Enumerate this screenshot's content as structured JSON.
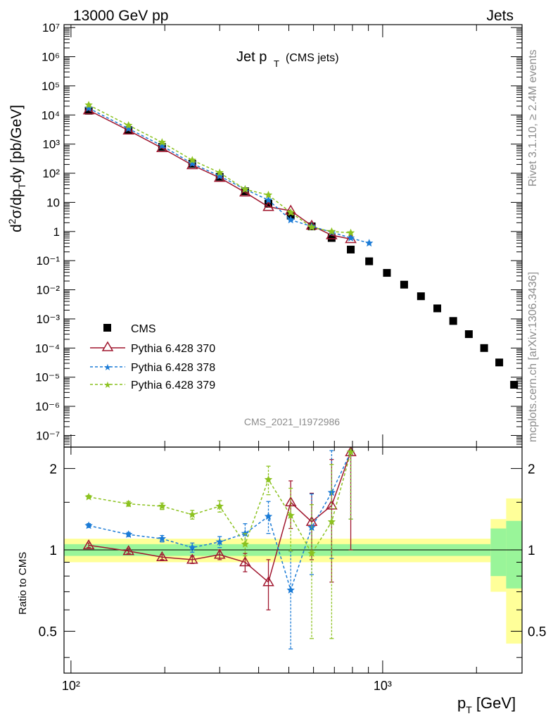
{
  "header": {
    "left": "13000 GeV pp",
    "right": "Jets"
  },
  "title": {
    "main": "Jet p",
    "sub": "T",
    "paren": "(CMS jets)"
  },
  "watermark": "CMS_2021_I1972986",
  "side": {
    "rivet": "Rivet 3.1.10, ≥ 2.4M events",
    "mcplots": "mcplots.cern.ch [arXiv:1306.3436]"
  },
  "axes": {
    "ylabel_upper": "d²σ/dp_T dy [pb/GeV]",
    "ylabel_lower": "Ratio to CMS",
    "xlabel": "p_T [GeV]"
  },
  "legend": {
    "cms": "CMS",
    "p370": "Pythia 6.428 370",
    "p378": "Pythia 6.428 378",
    "p379": "Pythia 6.428 379"
  },
  "chart_data": {
    "type": "scatter",
    "x_scale": "log",
    "upper": {
      "y_scale": "log",
      "ylim": [
        1e-07,
        10000000.0
      ],
      "xlim": [
        95,
        2800
      ],
      "y_ticks": [
        "10⁻⁷",
        "10⁻⁶",
        "10⁻⁵",
        "10⁻⁴",
        "10⁻³",
        "10⁻²",
        "10⁻¹",
        "1",
        "10",
        "10²",
        "10³",
        "10⁴",
        "10⁵",
        "10⁶",
        "10⁷"
      ],
      "series": [
        {
          "name": "CMS",
          "color": "#000000",
          "marker": "square",
          "x": [
            114,
            153,
            196,
            245,
            300,
            362,
            430,
            507,
            592,
            686,
            790,
            905,
            1032,
            1172,
            1327,
            1497,
            1684,
            1890,
            2116,
            2366,
            2640
          ],
          "y": [
            14000,
            3000,
            800,
            210,
            75,
            24,
            9,
            3.5,
            1.5,
            0.6,
            0.24,
            0.095,
            0.038,
            0.015,
            0.006,
            0.0023,
            0.00085,
            0.0003,
            0.0001,
            3.2e-05,
            5.5e-06
          ]
        },
        {
          "name": "Pythia 6.428 370",
          "color": "#a0172f",
          "marker": "triangle",
          "dash": "solid",
          "x": [
            114,
            153,
            196,
            245,
            300,
            362,
            430,
            507,
            592,
            686,
            790
          ],
          "y": [
            14500,
            2950,
            730,
            190,
            70,
            22,
            7.0,
            5.2,
            1.6,
            0.75,
            0.55
          ]
        },
        {
          "name": "Pythia 6.428 378",
          "color": "#1b7bd6",
          "marker": "star",
          "dash": "dashed",
          "x": [
            114,
            153,
            196,
            245,
            300,
            362,
            430,
            507,
            592,
            686,
            790,
            905
          ],
          "y": [
            17000,
            3400,
            880,
            215,
            80,
            28,
            12,
            2.5,
            1.5,
            0.95,
            0.6,
            0.4
          ]
        },
        {
          "name": "Pythia 6.428 379",
          "color": "#8cc220",
          "marker": "star",
          "dash": "dashed",
          "x": [
            114,
            153,
            196,
            245,
            300,
            362,
            430,
            507,
            592,
            686,
            790
          ],
          "y": [
            22000,
            4400,
            1150,
            280,
            105,
            28,
            18,
            4.5,
            1.4,
            1.0,
            0.9
          ]
        }
      ]
    },
    "lower": {
      "y_scale": "log",
      "ylim": [
        0.35,
        2.4
      ],
      "y_ticks": [
        0.5,
        1,
        2
      ],
      "uncertainty_band": {
        "x_edges": [
          95,
          2220,
          2490,
          2800
        ],
        "inner": [
          0.05,
          0.2,
          0.28
        ],
        "outer": [
          0.1,
          0.3,
          0.55
        ]
      },
      "series": [
        {
          "name": "Pythia 6.428 370",
          "color": "#a0172f",
          "x": [
            114,
            153,
            196,
            245,
            300,
            362,
            430,
            507,
            592,
            686,
            790
          ],
          "y": [
            1.04,
            0.99,
            0.94,
            0.92,
            0.96,
            0.9,
            0.76,
            1.5,
            1.27,
            1.46,
            2.3
          ],
          "err": [
            0.02,
            0.02,
            0.02,
            0.03,
            0.04,
            0.07,
            0.16,
            0.3,
            0.35,
            0.7,
            1.3
          ]
        },
        {
          "name": "Pythia 6.428 378",
          "color": "#1b7bd6",
          "x": [
            114,
            153,
            196,
            245,
            300,
            362,
            430,
            507,
            592,
            686,
            790
          ],
          "y": [
            1.23,
            1.14,
            1.1,
            1.02,
            1.07,
            1.15,
            1.33,
            0.71,
            1.21,
            1.63,
            2.3
          ],
          "err": [
            0.02,
            0.02,
            0.03,
            0.04,
            0.05,
            0.1,
            0.18,
            0.28,
            0.4,
            0.7,
            1.0
          ]
        },
        {
          "name": "Pythia 6.428 379",
          "color": "#8cc220",
          "x": [
            114,
            153,
            196,
            245,
            300,
            362,
            430,
            507,
            592,
            686,
            790
          ],
          "y": [
            1.57,
            1.48,
            1.45,
            1.35,
            1.45,
            1.05,
            1.82,
            1.34,
            0.97,
            1.27,
            2.3
          ],
          "err": [
            0.02,
            0.03,
            0.04,
            0.05,
            0.07,
            0.1,
            0.22,
            0.35,
            0.5,
            0.8,
            1.0
          ]
        }
      ]
    },
    "x_ticks": [
      {
        "value": 100,
        "label": "10²"
      },
      {
        "value": 1000,
        "label": "10³"
      }
    ]
  }
}
